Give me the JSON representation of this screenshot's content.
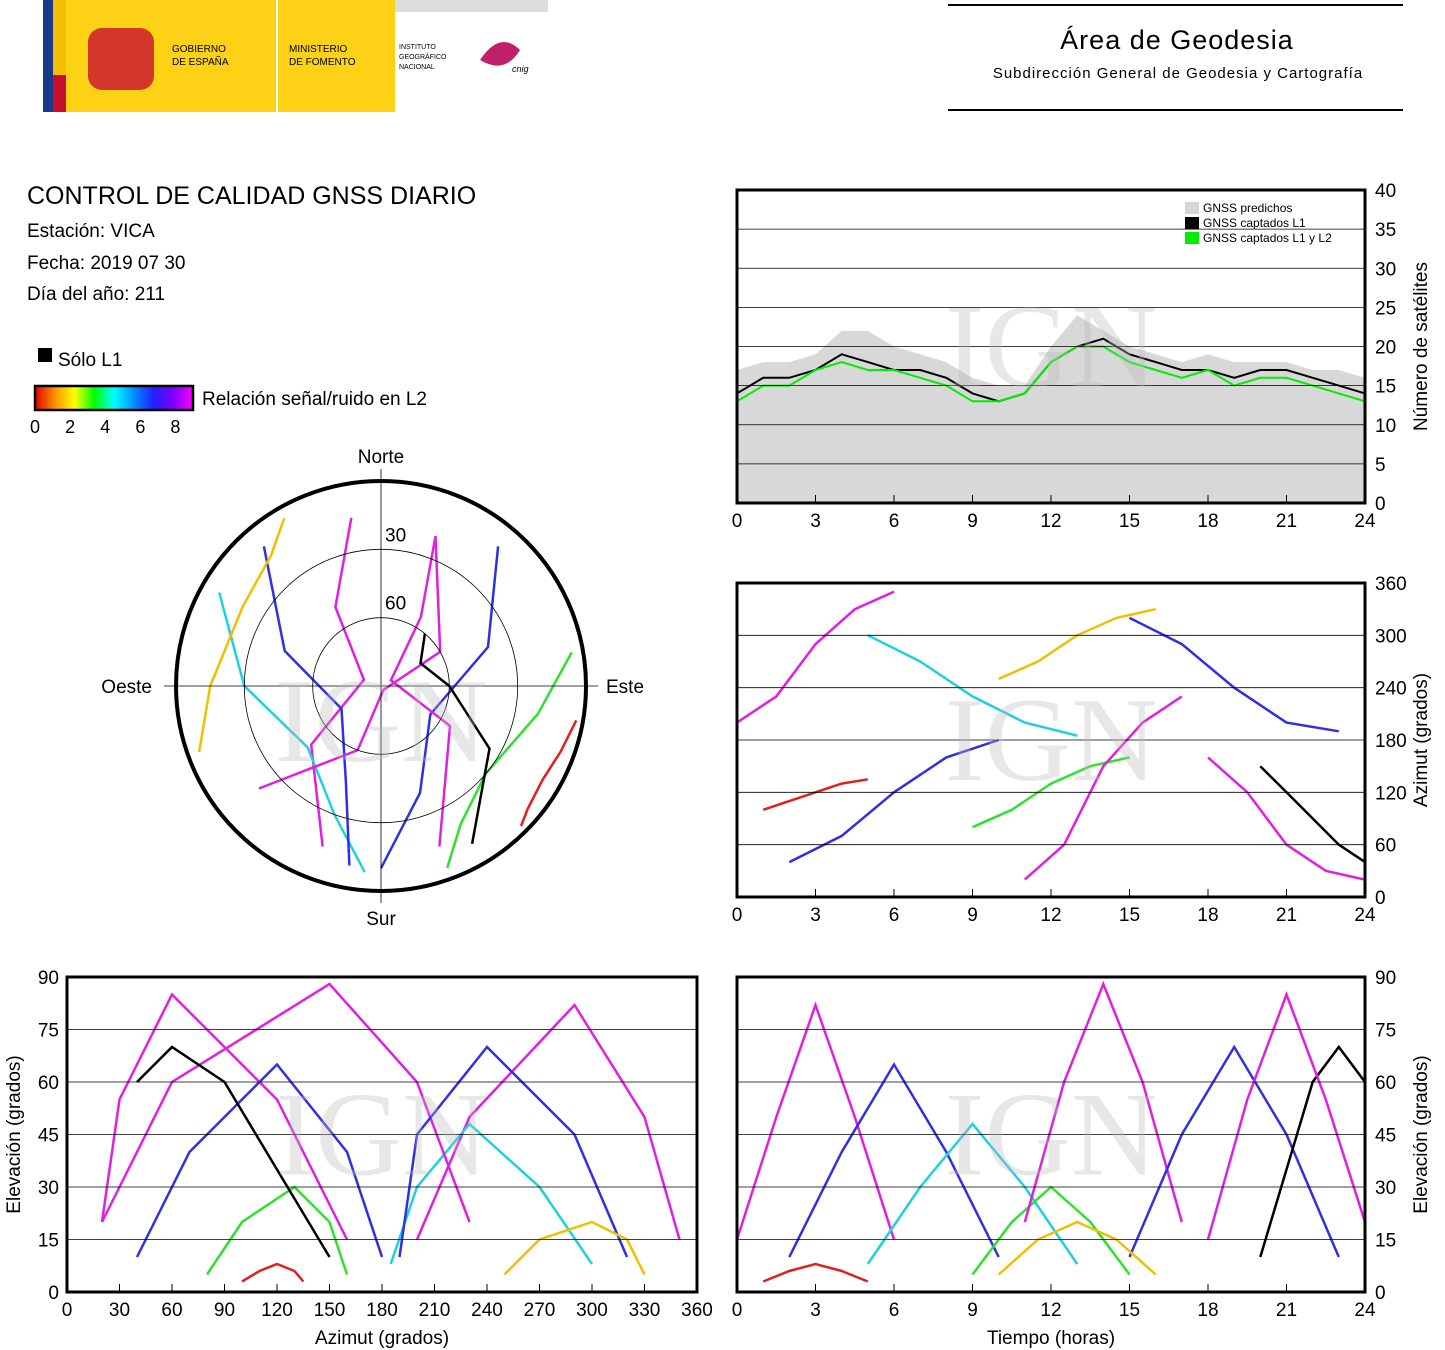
{
  "header": {
    "gobierno": [
      "GOBIERNO",
      "DE ESPAÑA"
    ],
    "ministerio": [
      "MINISTERIO",
      "DE FOMENTO"
    ],
    "instituto": [
      "INSTITUTO",
      "GEOGRÁFICO",
      "NACIONAL"
    ],
    "cnig": "cnig",
    "area": "Área de Geodesia",
    "subdireccion": "Subdirección General de Geodesia y Cartografía"
  },
  "report": {
    "title": "CONTROL DE CALIDAD GNSS DIARIO",
    "station": "Estación: VICA",
    "date": "Fecha: 2019 07 30",
    "doy": "Día del año: 211"
  },
  "legend": {
    "l1_only": "Sólo L1",
    "l1_only_color": "#000000",
    "snr_label": "Relación señal/ruido en L2",
    "snr_lim": [
      0,
      9
    ],
    "snr_ticks": [
      0,
      2,
      4,
      6,
      8
    ],
    "snr_colors": [
      "#e00000",
      "#ff9000",
      "#ffff00",
      "#00ff00",
      "#00ffff",
      "#0090ff",
      "#2020ff",
      "#8000ff",
      "#ff00ff"
    ]
  },
  "watermark": "IGN",
  "chart_data": [
    {
      "type": "line",
      "xlim": [
        0,
        24
      ],
      "xticks": [
        0,
        3,
        6,
        9,
        12,
        15,
        18,
        21,
        24
      ],
      "ylim": [
        0,
        40
      ],
      "yticks": [
        0,
        5,
        10,
        15,
        20,
        25,
        30,
        35,
        40
      ],
      "ylabel": "Número de satélites",
      "yaxis": "right",
      "grid": true,
      "legend": "upper right",
      "x": [
        0,
        1,
        2,
        3,
        4,
        5,
        6,
        7,
        8,
        9,
        10,
        11,
        12,
        13,
        14,
        15,
        16,
        17,
        18,
        19,
        20,
        21,
        22,
        23,
        24
      ],
      "series": [
        {
          "name": "GNSS predichos",
          "color": "#d8d8d8",
          "filled": true,
          "values": [
            17,
            18,
            18,
            19,
            22,
            22,
            20,
            19,
            18,
            16,
            15,
            15,
            20,
            24,
            22,
            20,
            19,
            18,
            19,
            18,
            18,
            18,
            17,
            17,
            16
          ]
        },
        {
          "name": "GNSS captados L1",
          "color": "#000000",
          "values": [
            14,
            16,
            16,
            17,
            19,
            18,
            17,
            17,
            16,
            14,
            13,
            14,
            18,
            20,
            21,
            19,
            18,
            17,
            17,
            16,
            17,
            17,
            16,
            15,
            14
          ]
        },
        {
          "name": "GNSS captados L1 y L2",
          "color": "#00ee00",
          "values": [
            13,
            15,
            15,
            17,
            18,
            17,
            17,
            16,
            15,
            13,
            13,
            14,
            18,
            20,
            20,
            18,
            17,
            16,
            17,
            15,
            16,
            16,
            15,
            14,
            13
          ]
        }
      ]
    },
    {
      "type": "track",
      "xlim": [
        0,
        24
      ],
      "xticks": [
        0,
        3,
        6,
        9,
        12,
        15,
        18,
        21,
        24
      ],
      "ylim": [
        0,
        360
      ],
      "yticks": [
        0,
        60,
        120,
        180,
        240,
        300,
        360
      ],
      "ylabel": "Azimut (grados)",
      "yaxis": "right",
      "grid": true,
      "series": [
        {
          "color": "#e020e0",
          "x": [
            0,
            1.5,
            3,
            4.5,
            6
          ],
          "values": [
            200,
            230,
            290,
            330,
            350
          ]
        },
        {
          "color": "#3030e0",
          "x": [
            2,
            4,
            6,
            8,
            10
          ],
          "values": [
            40,
            70,
            120,
            160,
            180
          ]
        },
        {
          "color": "#20d0e0",
          "x": [
            5,
            7,
            9,
            11,
            13
          ],
          "values": [
            300,
            270,
            230,
            200,
            185
          ]
        },
        {
          "color": "#30e030",
          "x": [
            9,
            10.5,
            12,
            13.5,
            15
          ],
          "values": [
            80,
            100,
            130,
            150,
            160
          ]
        },
        {
          "color": "#e020e0",
          "x": [
            11,
            12.5,
            14,
            15.5,
            17
          ],
          "values": [
            20,
            60,
            150,
            200,
            230
          ]
        },
        {
          "color": "#3030e0",
          "x": [
            15,
            17,
            19,
            21,
            23
          ],
          "values": [
            320,
            290,
            240,
            200,
            190
          ]
        },
        {
          "color": "#f0c000",
          "x": [
            10,
            11.5,
            13,
            14.5,
            16
          ],
          "values": [
            250,
            270,
            300,
            320,
            330
          ]
        },
        {
          "color": "#000000",
          "x": [
            20,
            21,
            22,
            23,
            24
          ],
          "values": [
            150,
            120,
            90,
            60,
            40
          ]
        },
        {
          "color": "#e02020",
          "x": [
            1,
            2,
            3,
            4,
            5
          ],
          "values": [
            100,
            110,
            120,
            130,
            135
          ]
        },
        {
          "color": "#e020e0",
          "x": [
            18,
            19.5,
            21,
            22.5,
            24
          ],
          "values": [
            160,
            120,
            60,
            30,
            20
          ]
        }
      ]
    },
    {
      "type": "polar",
      "rlim": [
        90,
        0
      ],
      "rticks": [
        30,
        60
      ],
      "directions": {
        "north": "Norte",
        "east": "Este",
        "south": "Sur",
        "west": "Oeste"
      },
      "series": [
        {
          "color": "#e020e0",
          "x": [
            200,
            230,
            290,
            330,
            350
          ],
          "values": [
            15,
            50,
            82,
            50,
            15
          ]
        },
        {
          "color": "#3030e0",
          "x": [
            40,
            70,
            120,
            160,
            180
          ],
          "values": [
            10,
            40,
            65,
            40,
            10
          ]
        },
        {
          "color": "#20d0e0",
          "x": [
            300,
            270,
            230,
            200,
            185
          ],
          "values": [
            8,
            30,
            48,
            30,
            8
          ]
        },
        {
          "color": "#30e030",
          "x": [
            80,
            100,
            130,
            150,
            160
          ],
          "values": [
            5,
            20,
            30,
            20,
            5
          ]
        },
        {
          "color": "#e020e0",
          "x": [
            20,
            60,
            150,
            200,
            230
          ],
          "values": [
            20,
            60,
            88,
            60,
            20
          ]
        },
        {
          "color": "#3030e0",
          "x": [
            320,
            290,
            240,
            200,
            190
          ],
          "values": [
            10,
            45,
            70,
            45,
            10
          ]
        },
        {
          "color": "#f0c000",
          "x": [
            250,
            270,
            300,
            320,
            330
          ],
          "values": [
            5,
            15,
            20,
            15,
            5
          ]
        },
        {
          "color": "#000000",
          "x": [
            150,
            120,
            90,
            60,
            40
          ],
          "values": [
            10,
            35,
            60,
            70,
            60
          ]
        },
        {
          "color": "#e02020",
          "x": [
            100,
            110,
            120,
            130,
            135
          ],
          "values": [
            3,
            6,
            8,
            6,
            3
          ]
        },
        {
          "color": "#e020e0",
          "x": [
            160,
            120,
            60,
            30,
            20
          ],
          "values": [
            15,
            55,
            85,
            55,
            20
          ]
        }
      ]
    },
    {
      "type": "track",
      "xlim": [
        0,
        360
      ],
      "xticks": [
        0,
        30,
        60,
        90,
        120,
        150,
        180,
        210,
        240,
        270,
        300,
        330,
        360
      ],
      "ylim": [
        0,
        90
      ],
      "yticks": [
        0,
        15,
        30,
        45,
        60,
        75,
        90
      ],
      "xlabel": "Azimut (grados)",
      "ylabel": "Elevación (grados)",
      "yaxis": "left",
      "grid": true,
      "series": [
        {
          "color": "#e020e0",
          "x": [
            200,
            230,
            290,
            330,
            350
          ],
          "values": [
            15,
            50,
            82,
            50,
            15
          ]
        },
        {
          "color": "#3030e0",
          "x": [
            40,
            70,
            120,
            160,
            180
          ],
          "values": [
            10,
            40,
            65,
            40,
            10
          ]
        },
        {
          "color": "#20d0e0",
          "x": [
            300,
            270,
            230,
            200,
            185
          ],
          "values": [
            8,
            30,
            48,
            30,
            8
          ]
        },
        {
          "color": "#30e030",
          "x": [
            80,
            100,
            130,
            150,
            160
          ],
          "values": [
            5,
            20,
            30,
            20,
            5
          ]
        },
        {
          "color": "#e020e0",
          "x": [
            20,
            60,
            150,
            200,
            230
          ],
          "values": [
            20,
            60,
            88,
            60,
            20
          ]
        },
        {
          "color": "#3030e0",
          "x": [
            320,
            290,
            240,
            200,
            190
          ],
          "values": [
            10,
            45,
            70,
            45,
            10
          ]
        },
        {
          "color": "#f0c000",
          "x": [
            250,
            270,
            300,
            320,
            330
          ],
          "values": [
            5,
            15,
            20,
            15,
            5
          ]
        },
        {
          "color": "#000000",
          "x": [
            150,
            120,
            90,
            60,
            40
          ],
          "values": [
            10,
            35,
            60,
            70,
            60
          ]
        },
        {
          "color": "#e02020",
          "x": [
            100,
            110,
            120,
            130,
            135
          ],
          "values": [
            3,
            6,
            8,
            6,
            3
          ]
        },
        {
          "color": "#e020e0",
          "x": [
            160,
            120,
            60,
            30,
            20
          ],
          "values": [
            15,
            55,
            85,
            55,
            20
          ]
        }
      ]
    },
    {
      "type": "track",
      "xlim": [
        0,
        24
      ],
      "xticks": [
        0,
        3,
        6,
        9,
        12,
        15,
        18,
        21,
        24
      ],
      "ylim": [
        0,
        90
      ],
      "yticks": [
        0,
        15,
        30,
        45,
        60,
        75,
        90
      ],
      "xlabel": "Tiempo (horas)",
      "ylabel": "Elevación (grados)",
      "yaxis": "right",
      "grid": true,
      "series": [
        {
          "color": "#e020e0",
          "x": [
            0,
            1.5,
            3,
            4.5,
            6
          ],
          "values": [
            15,
            50,
            82,
            50,
            15
          ]
        },
        {
          "color": "#3030e0",
          "x": [
            2,
            4,
            6,
            8,
            10
          ],
          "values": [
            10,
            40,
            65,
            40,
            10
          ]
        },
        {
          "color": "#20d0e0",
          "x": [
            5,
            7,
            9,
            11,
            13
          ],
          "values": [
            8,
            30,
            48,
            30,
            8
          ]
        },
        {
          "color": "#30e030",
          "x": [
            9,
            10.5,
            12,
            13.5,
            15
          ],
          "values": [
            5,
            20,
            30,
            20,
            5
          ]
        },
        {
          "color": "#e020e0",
          "x": [
            11,
            12.5,
            14,
            15.5,
            17
          ],
          "values": [
            20,
            60,
            88,
            60,
            20
          ]
        },
        {
          "color": "#3030e0",
          "x": [
            15,
            17,
            19,
            21,
            23
          ],
          "values": [
            10,
            45,
            70,
            45,
            10
          ]
        },
        {
          "color": "#f0c000",
          "x": [
            10,
            11.5,
            13,
            14.5,
            16
          ],
          "values": [
            5,
            15,
            20,
            15,
            5
          ]
        },
        {
          "color": "#000000",
          "x": [
            20,
            21,
            22,
            23,
            24
          ],
          "values": [
            10,
            35,
            60,
            70,
            60
          ]
        },
        {
          "color": "#e02020",
          "x": [
            1,
            2,
            3,
            4,
            5
          ],
          "values": [
            3,
            6,
            8,
            6,
            3
          ]
        },
        {
          "color": "#e020e0",
          "x": [
            18,
            19.5,
            21,
            22.5,
            24
          ],
          "values": [
            15,
            55,
            85,
            55,
            20
          ]
        }
      ]
    }
  ]
}
